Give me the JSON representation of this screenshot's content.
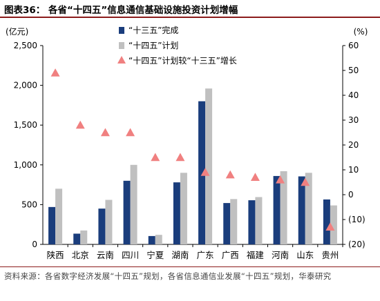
{
  "title": "图表36：  各省“十四五”信息通信基础设施投资计划增幅",
  "source": "资料来源：各省数字经济发展“十四五”规划，各省信息通信业发展“十四五”规划，华泰研究",
  "colors": {
    "completed": "#1a3d7c",
    "planned": "#c0c0c0",
    "growth": "#f08080",
    "rule": "#8b1a1a"
  },
  "chart_data": {
    "type": "bar",
    "title": "",
    "categories": [
      "陕西",
      "北京",
      "云南",
      "四川",
      "宁夏",
      "湖南",
      "广东",
      "广西",
      "福建",
      "河南",
      "山东",
      "贵州"
    ],
    "series": [
      {
        "name": "“十三五”完成",
        "type": "bar",
        "axis": "left",
        "values": [
          470,
          135,
          450,
          800,
          105,
          780,
          1800,
          520,
          555,
          860,
          855,
          565
        ]
      },
      {
        "name": "“十四五”计划",
        "type": "bar",
        "axis": "left",
        "values": [
          700,
          175,
          560,
          1000,
          120,
          900,
          1960,
          570,
          595,
          920,
          900,
          490
        ]
      },
      {
        "name": "“十四五”计划较“十三五”增长",
        "type": "scatter",
        "marker": "triangle",
        "axis": "right",
        "values": [
          49,
          28,
          25,
          25,
          15,
          15,
          9,
          8,
          7,
          6,
          5,
          -13
        ]
      }
    ],
    "ylabel_left": "(亿元)",
    "ylabel_right": "(%)",
    "ylim_left": [
      0,
      2500
    ],
    "ylim_right": [
      -20,
      60
    ],
    "yticks_left": [
      "0",
      "500",
      "1,000",
      "1,500",
      "2,000",
      "2,500"
    ],
    "yticks_right": [
      "(20)",
      "(10)",
      "0",
      "10",
      "20",
      "30",
      "40",
      "50",
      "60"
    ],
    "grid": false,
    "legend_position": "top-center"
  }
}
